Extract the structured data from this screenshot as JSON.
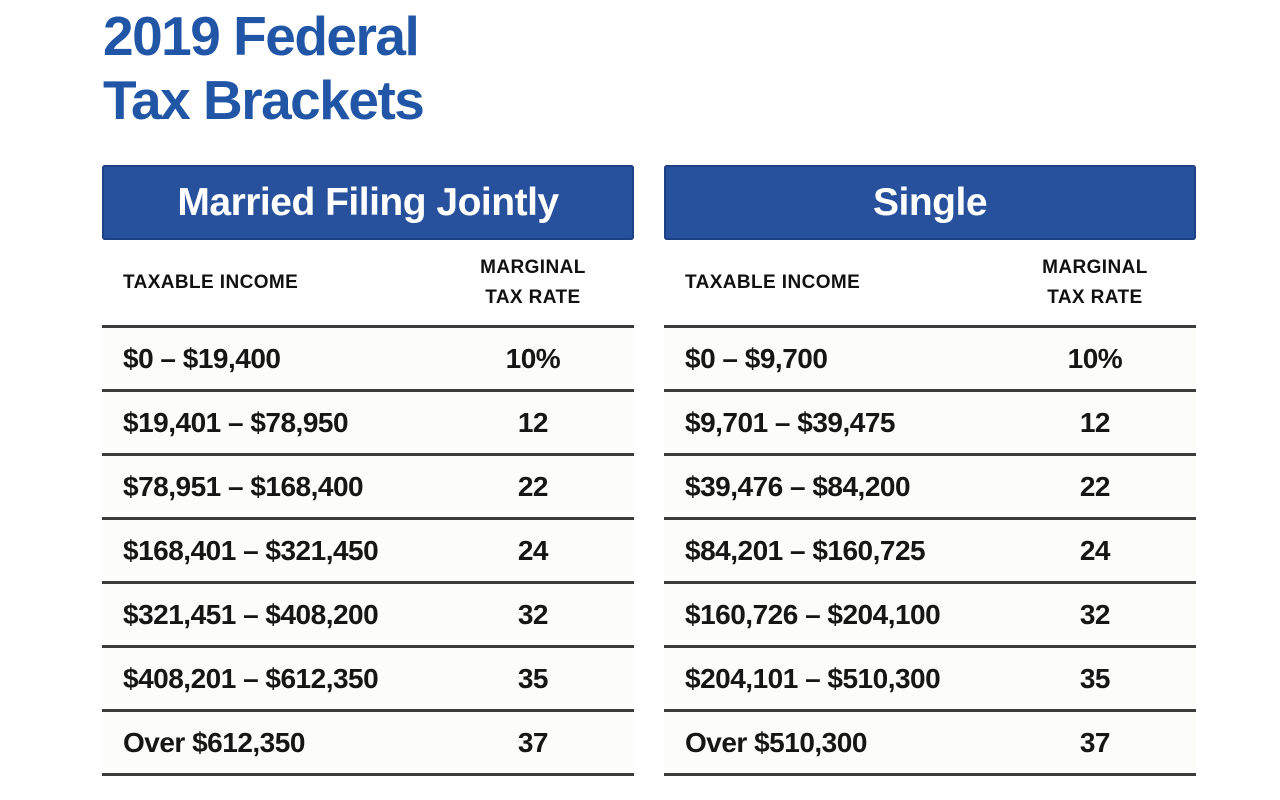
{
  "title": {
    "line1": "2019 Federal",
    "line2": "Tax Brackets"
  },
  "colors": {
    "title_blue": "#2156a6",
    "band_blue": "#27519c",
    "band_border": "#1d4184",
    "rule_gray": "#3c3c3c",
    "text_dark": "#161616",
    "band_text": "#ffffff",
    "page_bg": "#ffffff"
  },
  "columns": {
    "income_header": "TAXABLE INCOME",
    "rate_header_line1": "MARGINAL",
    "rate_header_line2": "TAX RATE"
  },
  "tables": [
    {
      "id": "married-filing-jointly",
      "title": "Married Filing Jointly",
      "rows": [
        {
          "income": "$0 – $19,400",
          "rate": "10%"
        },
        {
          "income": "$19,401 – $78,950",
          "rate": "12"
        },
        {
          "income": "$78,951 – $168,400",
          "rate": "22"
        },
        {
          "income": "$168,401 – $321,450",
          "rate": "24"
        },
        {
          "income": "$321,451 – $408,200",
          "rate": "32"
        },
        {
          "income": "$408,201 – $612,350",
          "rate": "35"
        },
        {
          "income": "Over $612,350",
          "rate": "37"
        }
      ]
    },
    {
      "id": "single",
      "title": "Single",
      "rows": [
        {
          "income": "$0 – $9,700",
          "rate": "10%"
        },
        {
          "income": "$9,701 – $39,475",
          "rate": "12"
        },
        {
          "income": "$39,476 – $84,200",
          "rate": "22"
        },
        {
          "income": "$84,201 – $160,725",
          "rate": "24"
        },
        {
          "income": "$160,726 – $204,100",
          "rate": "32"
        },
        {
          "income": "$204,101 – $510,300",
          "rate": "35"
        },
        {
          "income": "Over $510,300",
          "rate": "37"
        }
      ]
    }
  ],
  "chart_data": [
    {
      "type": "table",
      "title": "Married Filing Jointly",
      "columns": [
        "TAXABLE INCOME",
        "MARGINAL TAX RATE"
      ],
      "rows": [
        [
          "$0 – $19,400",
          "10%"
        ],
        [
          "$19,401 – $78,950",
          "12"
        ],
        [
          "$78,951 – $168,400",
          "22"
        ],
        [
          "$168,401 – $321,450",
          "24"
        ],
        [
          "$321,451 – $408,200",
          "32"
        ],
        [
          "$408,201 – $612,350",
          "35"
        ],
        [
          "Over $612,350",
          "37"
        ]
      ]
    },
    {
      "type": "table",
      "title": "Single",
      "columns": [
        "TAXABLE INCOME",
        "MARGINAL TAX RATE"
      ],
      "rows": [
        [
          "$0 – $9,700",
          "10%"
        ],
        [
          "$9,701 – $39,475",
          "12"
        ],
        [
          "$39,476 – $84,200",
          "22"
        ],
        [
          "$84,201 – $160,725",
          "24"
        ],
        [
          "$160,726 – $204,100",
          "32"
        ],
        [
          "$204,101 – $510,300",
          "35"
        ],
        [
          "Over $510,300",
          "37"
        ]
      ]
    }
  ]
}
